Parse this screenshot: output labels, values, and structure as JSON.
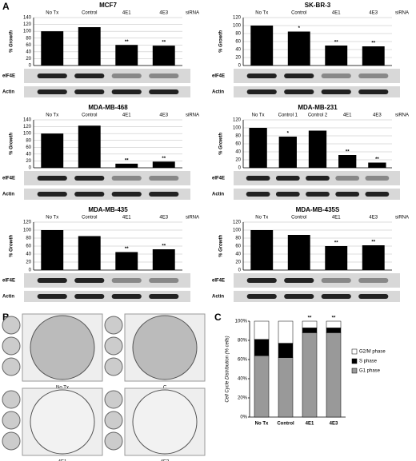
{
  "panel_labels": [
    "A",
    "B",
    "C"
  ],
  "blot_labels": [
    "eIF4E",
    "Actin"
  ],
  "plates": {
    "labels": [
      "No Tx",
      "C",
      "4E1",
      "4E3"
    ]
  },
  "chart_data": [
    {
      "type": "bar",
      "title": "MCF7",
      "y_label": "% Growth",
      "annotation": "siRNA",
      "categories": [
        "No Tx",
        "Control",
        "4E1",
        "4E3"
      ],
      "values": [
        100,
        112,
        60,
        58
      ],
      "marks": [
        null,
        null,
        "**",
        "**"
      ],
      "color": "#000000",
      "ylim": [
        0,
        140
      ],
      "yticks": [
        0,
        20,
        40,
        60,
        80,
        100,
        120,
        140
      ],
      "grid": true
    },
    {
      "type": "bar",
      "title": "SK-BR-3",
      "y_label": "% Growth",
      "annotation": "siRNA",
      "categories": [
        "No Tx",
        "Control",
        "4E1",
        "4E3"
      ],
      "values": [
        100,
        85,
        50,
        48
      ],
      "marks": [
        null,
        "*",
        "**",
        "**"
      ],
      "color": "#000000",
      "ylim": [
        0,
        120
      ],
      "yticks": [
        0,
        20,
        40,
        60,
        80,
        100,
        120
      ],
      "grid": true
    },
    {
      "type": "bar",
      "title": "MDA-MB-468",
      "y_label": "% Growth",
      "annotation": "siRNA",
      "categories": [
        "No Tx",
        "Control",
        "4E1",
        "4E3"
      ],
      "values": [
        100,
        123,
        12,
        18
      ],
      "marks": [
        null,
        null,
        "**",
        "**"
      ],
      "color": "#000000",
      "ylim": [
        0,
        140
      ],
      "yticks": [
        0,
        20,
        40,
        60,
        80,
        100,
        120,
        140
      ],
      "grid": true
    },
    {
      "type": "bar",
      "title": "MDA-MB-231",
      "y_label": "% Growth",
      "annotation": "siRNA",
      "categories": [
        "No Tx",
        "Control 1",
        "Control 2",
        "4E1",
        "4E3"
      ],
      "values": [
        100,
        78,
        93,
        32,
        13
      ],
      "marks": [
        null,
        "*",
        null,
        "**",
        "**"
      ],
      "color": "#000000",
      "ylim": [
        0,
        120
      ],
      "yticks": [
        0,
        20,
        40,
        60,
        80,
        100,
        120
      ],
      "grid": true
    },
    {
      "type": "bar",
      "title": "MDA-MB-435",
      "y_label": "% Growth",
      "annotation": "siRNA",
      "categories": [
        "No Tx",
        "Control",
        "4E1",
        "4E3"
      ],
      "values": [
        100,
        85,
        45,
        52
      ],
      "marks": [
        null,
        null,
        "**",
        "**"
      ],
      "color": "#000000",
      "ylim": [
        0,
        120
      ],
      "yticks": [
        0,
        20,
        40,
        60,
        80,
        100,
        120
      ],
      "grid": true
    },
    {
      "type": "bar",
      "title": "MDA-MB-435S",
      "y_label": "% Growth",
      "annotation": "siRNA",
      "categories": [
        "No Tx",
        "Control",
        "4E1",
        "4E3"
      ],
      "values": [
        100,
        88,
        60,
        62
      ],
      "marks": [
        null,
        null,
        "**",
        "**"
      ],
      "color": "#000000",
      "ylim": [
        0,
        120
      ],
      "yticks": [
        0,
        20,
        40,
        60,
        80,
        100,
        120
      ],
      "grid": true
    },
    {
      "type": "stacked_bar",
      "y_label": "Cell Cycle Distribution (% cells)",
      "categories": [
        "No Tx",
        "Control",
        "4E1",
        "4E3"
      ],
      "marks": [
        null,
        null,
        "**",
        "**"
      ],
      "series": [
        {
          "name": "G1 phase",
          "color": "#999999",
          "values": [
            64,
            62,
            88,
            88
          ]
        },
        {
          "name": "S phase",
          "color": "#000000",
          "values": [
            17,
            15,
            5,
            5
          ]
        },
        {
          "name": "G2/M phase",
          "color": "#ffffff",
          "values": [
            19,
            23,
            7,
            7
          ]
        }
      ],
      "ylim": [
        0,
        100
      ],
      "yticks": [
        {
          "value": 0,
          "label": "0%"
        },
        {
          "value": 20,
          "label": "20%"
        },
        {
          "value": 40,
          "label": "40%"
        },
        {
          "value": 60,
          "label": "60%"
        },
        {
          "value": 80,
          "label": "80%"
        },
        {
          "value": 100,
          "label": "100%"
        }
      ],
      "grid": false
    }
  ]
}
